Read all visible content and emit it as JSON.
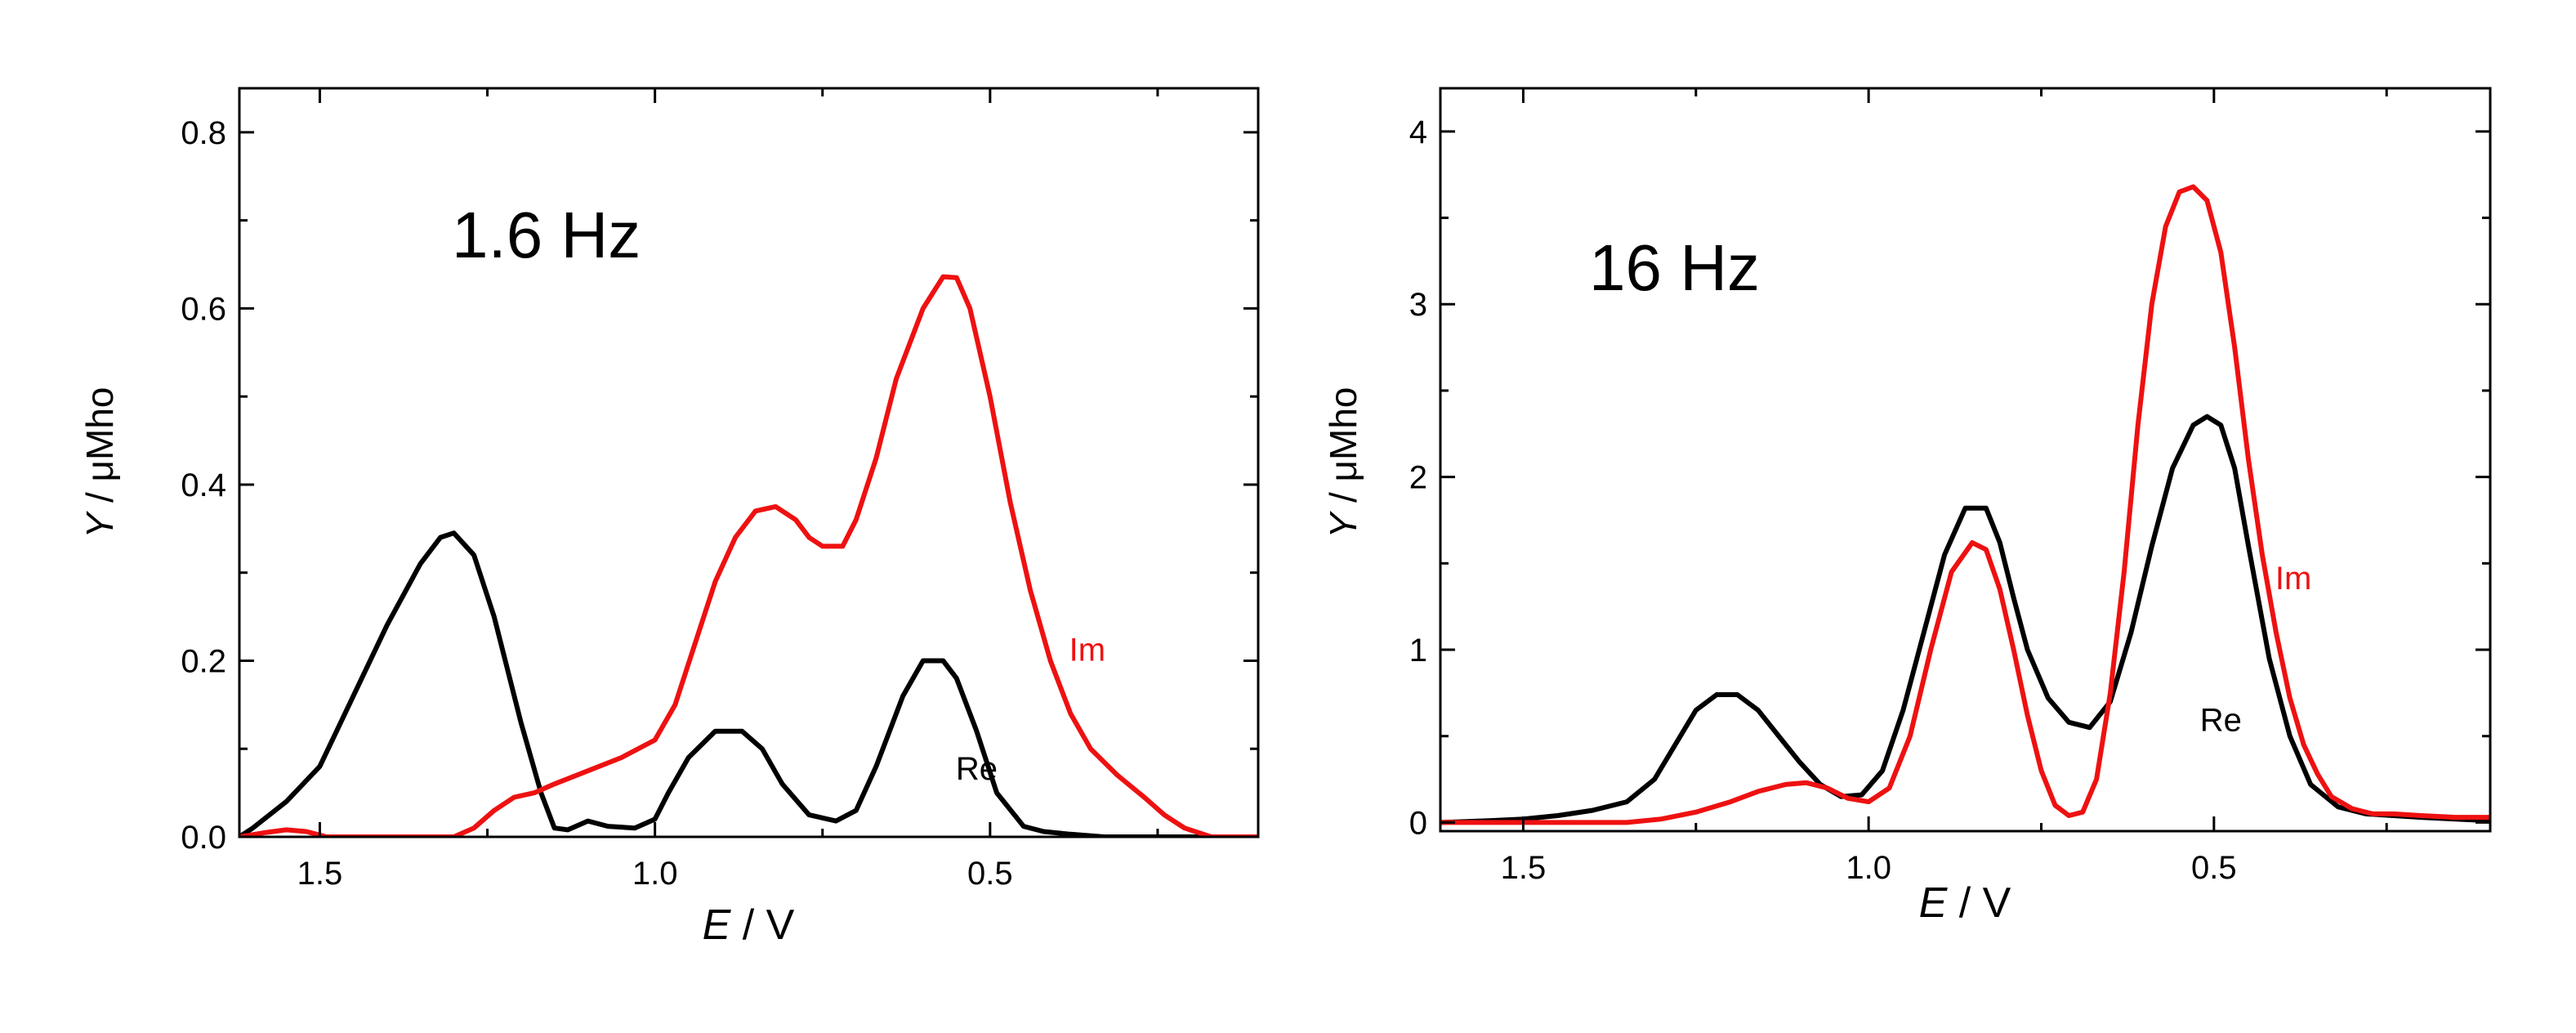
{
  "colors": {
    "re": "#000000",
    "im": "#ee1111",
    "axis": "#000000"
  },
  "chart_data": [
    {
      "type": "line",
      "annotation": "1.6 Hz",
      "xlabel_italic": "E",
      "xlabel_rest": " / V",
      "ylabel_italic": "Y",
      "ylabel_rest": " / μMho",
      "xlim": [
        1.62,
        0.1
      ],
      "ylim": [
        0,
        0.85
      ],
      "xticks": [
        1.5,
        1.0,
        0.5
      ],
      "xtick_labels": [
        "1.5",
        "1.0",
        "0.5"
      ],
      "yticks": [
        0,
        0.2,
        0.4,
        0.6,
        0.8
      ],
      "ytick_labels": [
        "0.0",
        "0.2",
        "0.4",
        "0.6",
        "0.8"
      ],
      "series": [
        {
          "name": "Re",
          "label": "Re",
          "label_at": [
            0.52,
            0.065
          ],
          "color": "#000000",
          "x": [
            1.62,
            1.6,
            1.55,
            1.5,
            1.45,
            1.4,
            1.35,
            1.32,
            1.3,
            1.27,
            1.24,
            1.2,
            1.17,
            1.15,
            1.13,
            1.1,
            1.07,
            1.03,
            1.0,
            0.98,
            0.95,
            0.91,
            0.87,
            0.84,
            0.81,
            0.77,
            0.73,
            0.7,
            0.67,
            0.63,
            0.6,
            0.57,
            0.55,
            0.52,
            0.49,
            0.45,
            0.42,
            0.38,
            0.33,
            0.28,
            0.23,
            0.1
          ],
          "y": [
            0.0,
            0.01,
            0.04,
            0.08,
            0.16,
            0.24,
            0.31,
            0.34,
            0.345,
            0.32,
            0.25,
            0.13,
            0.05,
            0.01,
            0.008,
            0.018,
            0.012,
            0.01,
            0.02,
            0.05,
            0.09,
            0.12,
            0.12,
            0.1,
            0.06,
            0.025,
            0.018,
            0.03,
            0.08,
            0.16,
            0.2,
            0.2,
            0.18,
            0.12,
            0.05,
            0.012,
            0.006,
            0.003,
            0.0,
            0.0,
            0.0,
            0.0
          ]
        },
        {
          "name": "Im",
          "label": "Im",
          "label_at": [
            0.355,
            0.2
          ],
          "color": "#ee1111",
          "x": [
            1.62,
            1.58,
            1.55,
            1.52,
            1.49,
            1.45,
            1.4,
            1.35,
            1.3,
            1.27,
            1.24,
            1.21,
            1.18,
            1.15,
            1.1,
            1.05,
            1.0,
            0.97,
            0.94,
            0.91,
            0.88,
            0.85,
            0.82,
            0.79,
            0.77,
            0.75,
            0.72,
            0.7,
            0.67,
            0.64,
            0.6,
            0.57,
            0.55,
            0.53,
            0.5,
            0.47,
            0.44,
            0.41,
            0.38,
            0.35,
            0.31,
            0.27,
            0.24,
            0.21,
            0.17,
            0.1
          ],
          "y": [
            0.0,
            0.005,
            0.008,
            0.006,
            0.0,
            0.0,
            0.0,
            0.0,
            0.0,
            0.01,
            0.03,
            0.045,
            0.05,
            0.06,
            0.075,
            0.09,
            0.11,
            0.15,
            0.22,
            0.29,
            0.34,
            0.37,
            0.375,
            0.36,
            0.34,
            0.33,
            0.33,
            0.36,
            0.43,
            0.52,
            0.6,
            0.636,
            0.635,
            0.6,
            0.5,
            0.38,
            0.28,
            0.2,
            0.14,
            0.1,
            0.07,
            0.045,
            0.025,
            0.01,
            0.0,
            0.0
          ]
        }
      ]
    },
    {
      "type": "line",
      "annotation": "16 Hz",
      "xlabel_italic": "E",
      "xlabel_rest": " / V",
      "ylabel_italic": "Y",
      "ylabel_rest": " / μMho",
      "xlim": [
        1.62,
        0.1
      ],
      "ylim": [
        -0.05,
        4.25
      ],
      "xticks": [
        1.5,
        1.0,
        0.5
      ],
      "xtick_labels": [
        "1.5",
        "1.0",
        "0.5"
      ],
      "yticks": [
        0,
        1,
        2,
        3,
        4
      ],
      "ytick_labels": [
        "0",
        "1",
        "2",
        "3",
        "4"
      ],
      "series": [
        {
          "name": "Re",
          "label": "Re",
          "label_at": [
            0.49,
            0.53
          ],
          "color": "#000000",
          "x": [
            1.62,
            1.55,
            1.5,
            1.45,
            1.4,
            1.35,
            1.31,
            1.28,
            1.25,
            1.22,
            1.19,
            1.16,
            1.13,
            1.1,
            1.07,
            1.04,
            1.01,
            0.98,
            0.95,
            0.92,
            0.89,
            0.86,
            0.83,
            0.81,
            0.79,
            0.77,
            0.74,
            0.71,
            0.68,
            0.65,
            0.62,
            0.59,
            0.56,
            0.53,
            0.51,
            0.49,
            0.47,
            0.45,
            0.42,
            0.39,
            0.36,
            0.32,
            0.28,
            0.24,
            0.2,
            0.15,
            0.1
          ],
          "y": [
            0.0,
            0.01,
            0.02,
            0.04,
            0.07,
            0.12,
            0.25,
            0.45,
            0.65,
            0.74,
            0.74,
            0.65,
            0.5,
            0.35,
            0.22,
            0.15,
            0.16,
            0.3,
            0.65,
            1.1,
            1.55,
            1.82,
            1.82,
            1.62,
            1.3,
            1.0,
            0.72,
            0.58,
            0.55,
            0.7,
            1.1,
            1.6,
            2.05,
            2.3,
            2.35,
            2.3,
            2.05,
            1.6,
            0.95,
            0.5,
            0.22,
            0.09,
            0.05,
            0.04,
            0.03,
            0.02,
            0.01
          ]
        },
        {
          "name": "Im",
          "label": "Im",
          "label_at": [
            0.385,
            1.35
          ],
          "color": "#ee1111",
          "x": [
            1.62,
            1.55,
            1.5,
            1.45,
            1.4,
            1.35,
            1.3,
            1.25,
            1.2,
            1.16,
            1.12,
            1.09,
            1.06,
            1.03,
            1.0,
            0.97,
            0.94,
            0.91,
            0.88,
            0.85,
            0.83,
            0.81,
            0.79,
            0.77,
            0.75,
            0.73,
            0.71,
            0.69,
            0.67,
            0.65,
            0.63,
            0.61,
            0.59,
            0.57,
            0.55,
            0.53,
            0.51,
            0.49,
            0.47,
            0.45,
            0.43,
            0.41,
            0.39,
            0.37,
            0.35,
            0.33,
            0.3,
            0.27,
            0.24,
            0.2,
            0.15,
            0.1
          ],
          "y": [
            0.0,
            0.0,
            0.0,
            0.0,
            0.0,
            0.0,
            0.02,
            0.06,
            0.12,
            0.18,
            0.22,
            0.23,
            0.2,
            0.14,
            0.12,
            0.2,
            0.5,
            1.0,
            1.45,
            1.62,
            1.58,
            1.35,
            1.0,
            0.62,
            0.3,
            0.1,
            0.04,
            0.06,
            0.25,
            0.75,
            1.45,
            2.3,
            3.0,
            3.45,
            3.65,
            3.68,
            3.6,
            3.3,
            2.75,
            2.1,
            1.55,
            1.1,
            0.72,
            0.45,
            0.28,
            0.15,
            0.08,
            0.05,
            0.05,
            0.04,
            0.03,
            0.03
          ]
        }
      ]
    }
  ]
}
